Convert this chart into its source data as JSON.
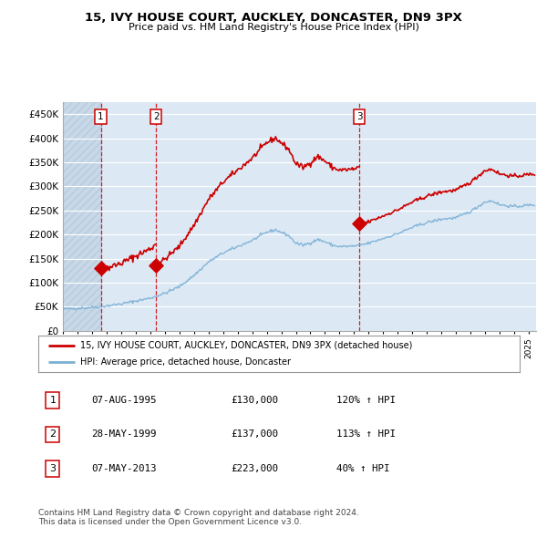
{
  "title": "15, IVY HOUSE COURT, AUCKLEY, DONCASTER, DN9 3PX",
  "subtitle": "Price paid vs. HM Land Registry's House Price Index (HPI)",
  "ylim": [
    0,
    475000
  ],
  "yticks": [
    0,
    50000,
    100000,
    150000,
    200000,
    250000,
    300000,
    350000,
    400000,
    450000
  ],
  "ytick_labels": [
    "£0",
    "£50K",
    "£100K",
    "£150K",
    "£200K",
    "£250K",
    "£300K",
    "£350K",
    "£400K",
    "£450K"
  ],
  "bg_color": "#dce9f5",
  "hatch_color": "#c8d8e8",
  "grid_color": "#ffffff",
  "sale_color": "#cc0000",
  "hpi_line_color": "#7bafd4",
  "legend_entries": [
    {
      "label": "15, IVY HOUSE COURT, AUCKLEY, DONCASTER, DN9 3PX (detached house)",
      "color": "#cc0000"
    },
    {
      "label": "HPI: Average price, detached house, Doncaster",
      "color": "#7bafd4"
    }
  ],
  "table_rows": [
    {
      "num": "1",
      "date": "07-AUG-1995",
      "price": "£130,000",
      "pct": "120% ↑ HPI"
    },
    {
      "num": "2",
      "date": "28-MAY-1999",
      "price": "£137,000",
      "pct": "113% ↑ HPI"
    },
    {
      "num": "3",
      "date": "07-MAY-2013",
      "price": "£223,000",
      "pct": "40% ↑ HPI"
    }
  ],
  "footer": "Contains HM Land Registry data © Crown copyright and database right 2024.\nThis data is licensed under the Open Government Licence v3.0.",
  "xlim_start": 1993.0,
  "xlim_end": 2025.5,
  "sale_years": [
    1995.6,
    1999.4,
    2013.35
  ],
  "sale_prices": [
    130000,
    137000,
    223000
  ],
  "sale_labels": [
    "1",
    "2",
    "3"
  ]
}
